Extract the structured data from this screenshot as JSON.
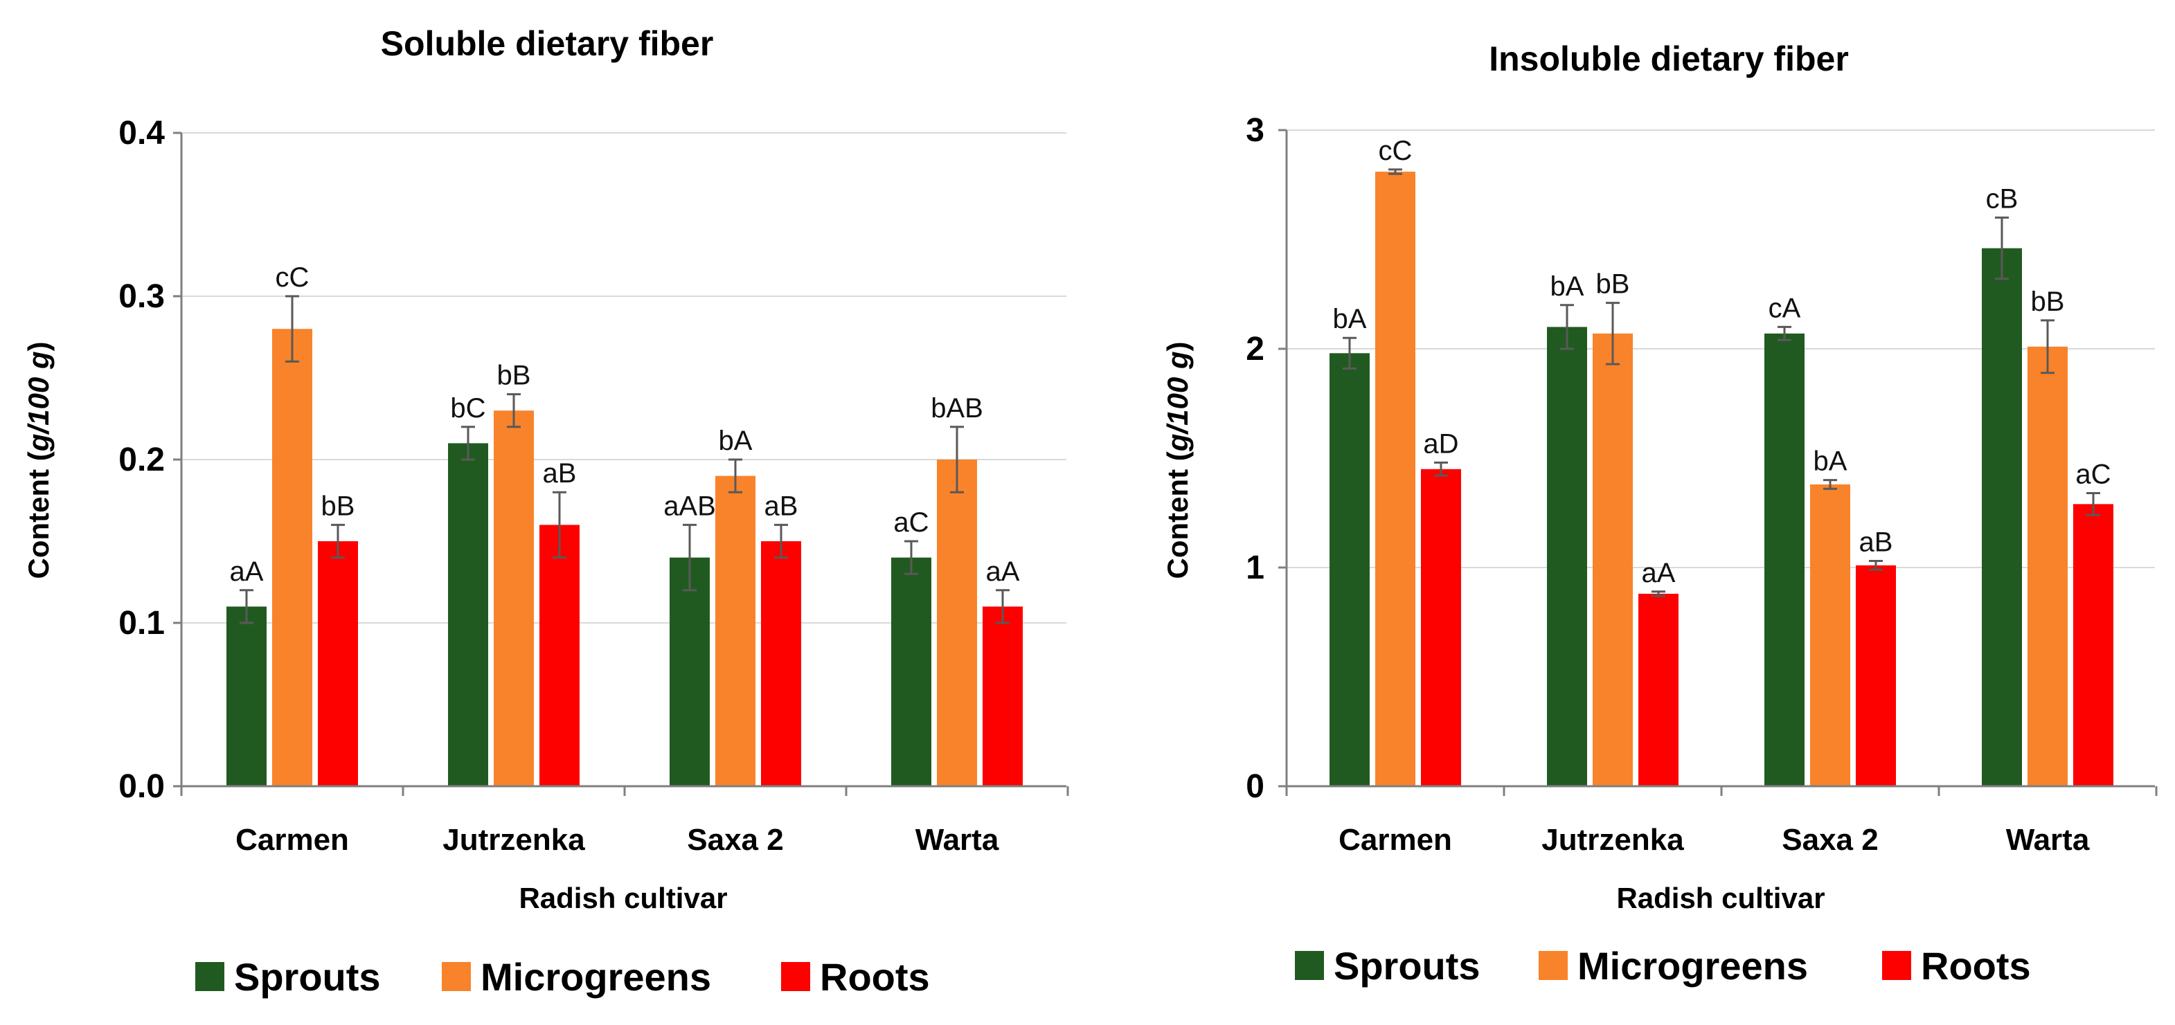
{
  "colors": {
    "Sprouts": "#215a20",
    "Microgreens": "#f9832a",
    "Roots": "#fd0000"
  },
  "legend": [
    "Sprouts",
    "Microgreens",
    "Roots"
  ],
  "chart_data": [
    {
      "type": "bar",
      "title": "Soluble dietary fiber",
      "xlabel": "Radish cultivar",
      "ylabel_prefix": "Content (",
      "ylabel_unit": "g/100 g",
      "ylabel_suffix": ")",
      "ylim": [
        0.0,
        0.4
      ],
      "yticks": [
        "0.0",
        "0.1",
        "0.2",
        "0.3",
        "0.4"
      ],
      "ytick_values": [
        0.0,
        0.1,
        0.2,
        0.3,
        0.4
      ],
      "grid": true,
      "categories": [
        "Carmen",
        "Jutrzenka",
        "Saxa 2",
        "Warta"
      ],
      "series": [
        {
          "name": "Sprouts",
          "values": [
            0.11,
            0.21,
            0.14,
            0.14
          ],
          "errors": [
            0.01,
            0.01,
            0.02,
            0.01
          ],
          "labels": [
            "aA",
            "bC",
            "aAB",
            "aC"
          ]
        },
        {
          "name": "Microgreens",
          "values": [
            0.28,
            0.23,
            0.19,
            0.2
          ],
          "errors": [
            0.02,
            0.01,
            0.01,
            0.02
          ],
          "labels": [
            "cC",
            "bB",
            "bA",
            "bAB"
          ]
        },
        {
          "name": "Roots",
          "values": [
            0.15,
            0.16,
            0.15,
            0.11
          ],
          "errors": [
            0.01,
            0.02,
            0.01,
            0.01
          ],
          "labels": [
            "bB",
            "aB",
            "aB",
            "aA"
          ]
        }
      ]
    },
    {
      "type": "bar",
      "title": "Insoluble dietary fiber",
      "xlabel": "Radish cultivar",
      "ylabel_prefix": "Content (",
      "ylabel_unit": "g/100 g",
      "ylabel_suffix": ")",
      "ylim": [
        0,
        3
      ],
      "yticks": [
        "0",
        "1",
        "2",
        "3"
      ],
      "ytick_values": [
        0,
        1,
        2,
        3
      ],
      "grid": true,
      "categories": [
        "Carmen",
        "Jutrzenka",
        "Saxa 2",
        "Warta"
      ],
      "series": [
        {
          "name": "Sprouts",
          "values": [
            1.98,
            2.1,
            2.07,
            2.46
          ],
          "errors": [
            0.07,
            0.1,
            0.03,
            0.14
          ],
          "labels": [
            "bA",
            "bA",
            "cA",
            "cB"
          ]
        },
        {
          "name": "Microgreens",
          "values": [
            2.81,
            2.07,
            1.38,
            2.01
          ],
          "errors": [
            0.01,
            0.14,
            0.02,
            0.12
          ],
          "labels": [
            "cC",
            "bB",
            "bA",
            "bB"
          ]
        },
        {
          "name": "Roots",
          "values": [
            1.45,
            0.88,
            1.01,
            1.29
          ],
          "errors": [
            0.03,
            0.01,
            0.02,
            0.05
          ],
          "labels": [
            "aD",
            "aA",
            "aB",
            "aC"
          ]
        }
      ]
    }
  ]
}
